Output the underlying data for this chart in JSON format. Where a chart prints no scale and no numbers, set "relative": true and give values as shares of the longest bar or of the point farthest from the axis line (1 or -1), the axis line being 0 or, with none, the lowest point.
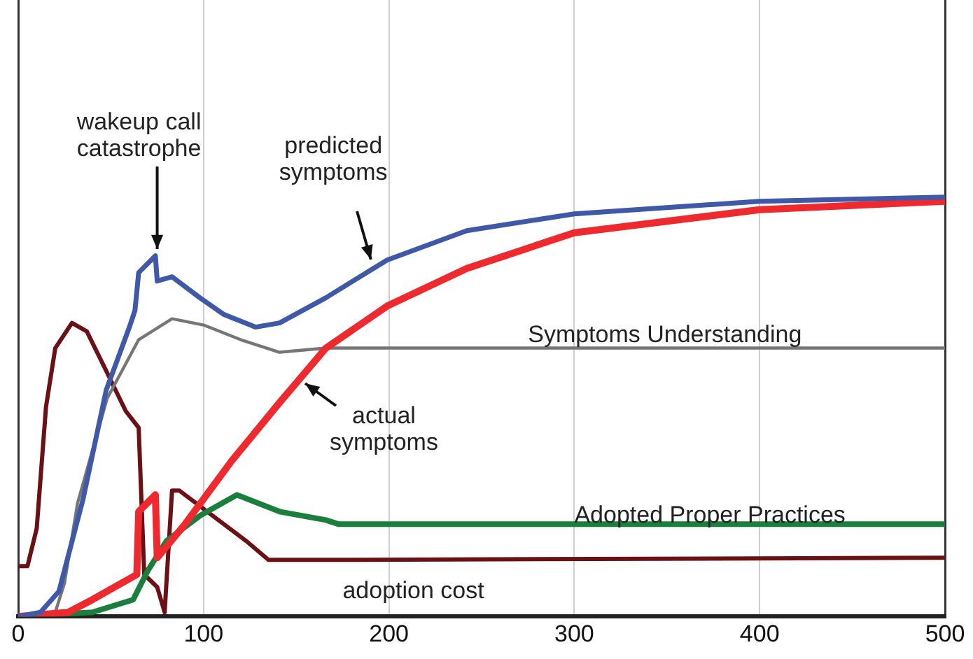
{
  "chart_data": {
    "type": "line",
    "relative": true,
    "xlim": [
      0,
      500
    ],
    "xticks": [
      0,
      100,
      200,
      300,
      400,
      500
    ],
    "grid": "x",
    "legend": false,
    "marker": "none",
    "annotations": [
      {
        "text": "wakeup call catastrophe",
        "x": 75,
        "y": 0.86
      },
      {
        "text": "actual symptoms",
        "x": 152,
        "y": 0.57
      }
    ],
    "series": [
      {
        "name": "predicted symptoms",
        "color": "#3f58a8",
        "x": [
          0,
          12,
          22,
          35,
          47.5,
          60,
          63,
          65,
          74,
          75,
          83,
          98,
          111,
          128,
          141,
          166,
          199,
          242,
          300,
          400,
          500
        ],
        "values": [
          0,
          0.01,
          0.06,
          0.28,
          0.54,
          0.69,
          0.73,
          0.82,
          0.86,
          0.8,
          0.81,
          0.76,
          0.72,
          0.69,
          0.7,
          0.76,
          0.85,
          0.92,
          0.96,
          0.99,
          1
        ]
      },
      {
        "color": "#ee2a2e",
        "x": [
          0,
          27,
          40,
          64,
          65,
          74,
          75,
          90,
          115,
          141,
          166,
          199,
          242,
          300,
          400,
          500
        ],
        "values": [
          0,
          0.01,
          0.04,
          0.1,
          0.25,
          0.29,
          0.14,
          0.22,
          0.37,
          0.51,
          0.64,
          0.74,
          0.83,
          0.915,
          0.97,
          0.99
        ]
      },
      {
        "name": "Symptoms Understanding",
        "color": "#767676",
        "x": [
          0,
          20,
          25,
          32,
          48,
          65,
          83,
          100,
          120,
          141,
          166,
          300,
          500
        ],
        "values": [
          0,
          0.01,
          0.08,
          0.27,
          0.52,
          0.66,
          0.71,
          0.695,
          0.66,
          0.63,
          0.64,
          0.64,
          0.64
        ]
      },
      {
        "name": "Adopted Proper Practices",
        "color": "#1a7f3c",
        "x": [
          0,
          40,
          62,
          70,
          80,
          98,
          118,
          141,
          166,
          173,
          300,
          500
        ],
        "values": [
          0,
          0.01,
          0.04,
          0.11,
          0.18,
          0.24,
          0.29,
          0.25,
          0.23,
          0.22,
          0.22,
          0.22
        ]
      },
      {
        "name": "adoption cost",
        "color": "#6b1014",
        "x": [
          0,
          5,
          10,
          15,
          20,
          29,
          37,
          47,
          58,
          65,
          68,
          75,
          79,
          83,
          87,
          108,
          123,
          135,
          171,
          500
        ],
        "values": [
          0.12,
          0.12,
          0.21,
          0.5,
          0.64,
          0.7,
          0.68,
          0.59,
          0.49,
          0.45,
          0.1,
          0.07,
          0.01,
          0.3,
          0.3,
          0.23,
          0.18,
          0.135,
          0.135,
          0.14
        ]
      }
    ]
  }
}
